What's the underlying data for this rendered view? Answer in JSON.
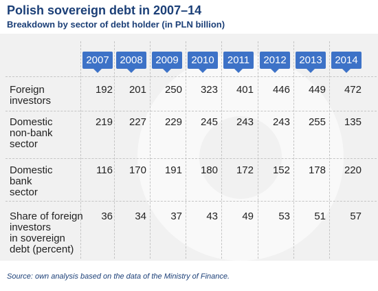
{
  "title": "Polish sovereign debt in 2007–14",
  "subtitle": "Breakdown by sector of debt holder (in PLN billion)",
  "source": "Source: own analysis based on the data of the Ministry of Finance.",
  "colors": {
    "title": "#1b3f77",
    "year_tab": "#3d72c7",
    "panel": "#f1f1f1"
  },
  "chart_data": {
    "type": "table",
    "title": "Polish sovereign debt in 2007–14",
    "subtitle": "Breakdown by sector of debt holder (in PLN billion)",
    "columns": [
      "2007",
      "2008",
      "2009",
      "2010",
      "2011",
      "2012",
      "2013",
      "2014"
    ],
    "rows": [
      {
        "label": "Foreign investors",
        "label_lines": [
          "Foreign",
          "investors"
        ],
        "values": [
          192,
          201,
          250,
          323,
          401,
          446,
          449,
          472
        ]
      },
      {
        "label": "Domestic non-bank sector",
        "label_lines": [
          "Domestic",
          "non-bank",
          "sector"
        ],
        "values": [
          219,
          227,
          229,
          245,
          243,
          243,
          255,
          135
        ]
      },
      {
        "label": "Domestic bank sector",
        "label_lines": [
          "Domestic",
          "bank",
          "sector"
        ],
        "values": [
          116,
          170,
          191,
          180,
          172,
          152,
          178,
          220
        ]
      },
      {
        "label": "Share of foreign investors in sovereign debt (percent)",
        "label_lines": [
          "Share of foreign",
          "investors",
          "in sovereign",
          "debt (percent)"
        ],
        "values": [
          36,
          34,
          37,
          43,
          49,
          53,
          51,
          57
        ]
      }
    ]
  }
}
